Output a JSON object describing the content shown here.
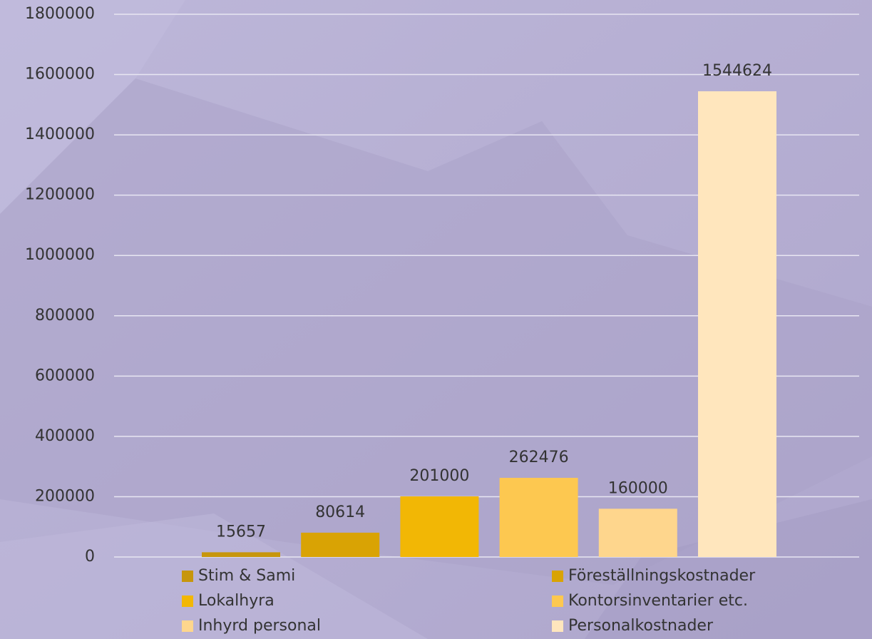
{
  "chart_data": {
    "type": "bar",
    "series": [
      {
        "name": "Stim & Sami",
        "color": "#c7960c",
        "values": [
          15657
        ]
      },
      {
        "name": "Föreställningskostnader",
        "color": "#d9a304",
        "values": [
          80614
        ]
      },
      {
        "name": "Lokalhyra",
        "color": "#f2b705",
        "values": [
          201000
        ]
      },
      {
        "name": "Kontorsinventarier etc.",
        "color": "#fdc850",
        "values": [
          262476
        ]
      },
      {
        "name": "Inhyrd personal",
        "color": "#fed68d",
        "values": [
          160000
        ]
      },
      {
        "name": "Personalkostnader",
        "color": "#ffe6bd",
        "values": [
          1544624
        ]
      }
    ],
    "ylim": [
      0,
      1800000
    ],
    "yticks": [
      0,
      200000,
      400000,
      600000,
      800000,
      1000000,
      1200000,
      1400000,
      1600000,
      1800000
    ],
    "grid": true
  }
}
